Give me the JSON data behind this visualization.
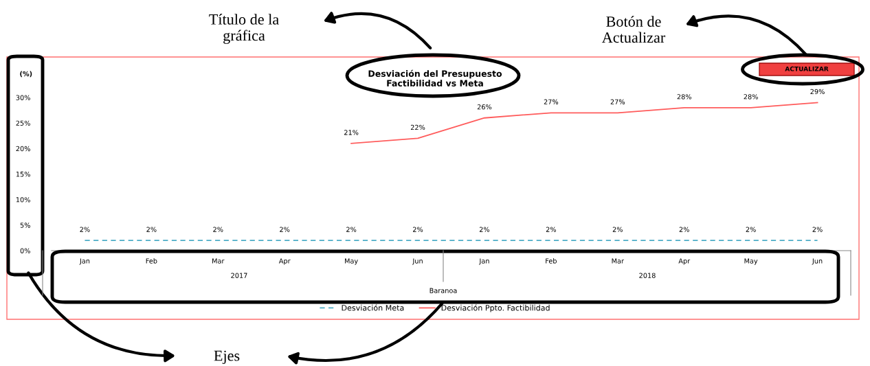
{
  "chart_data": {
    "type": "line",
    "title": "Desviación del Presupuesto\nFactibilidad vs Meta",
    "ylabel": "(%)",
    "categories": [
      "Jan",
      "Feb",
      "Mar",
      "Apr",
      "May",
      "Jun",
      "Jan",
      "Feb",
      "Mar",
      "Apr",
      "May",
      "Jun"
    ],
    "series": [
      {
        "name": "Desviación Meta",
        "color": "#4bacc6",
        "line_style": "dashed",
        "values": [
          2,
          2,
          2,
          2,
          2,
          2,
          2,
          2,
          2,
          2,
          2,
          2
        ],
        "value_labels": [
          "2%",
          "2%",
          "2%",
          "2%",
          "2%",
          "2%",
          "2%",
          "2%",
          "2%",
          "2%",
          "2%",
          "2%"
        ]
      },
      {
        "name": "Desviación Ppto. Factibilidad",
        "color": "#ff5b5b",
        "line_style": "solid",
        "values": [
          null,
          null,
          null,
          null,
          21,
          22,
          26,
          27,
          27,
          28,
          28,
          29
        ],
        "value_labels": [
          null,
          null,
          null,
          null,
          "21%",
          "22%",
          "26%",
          "27%",
          "27%",
          "28%",
          "28%",
          "29%"
        ]
      }
    ],
    "ylim": [
      0,
      30
    ],
    "yticks": [
      {
        "value": 0,
        "label": "0%"
      },
      {
        "value": 5,
        "label": "5%"
      },
      {
        "value": 10,
        "label": "10%"
      },
      {
        "value": 15,
        "label": "15%"
      },
      {
        "value": 20,
        "label": "20%"
      },
      {
        "value": 25,
        "label": "25%"
      },
      {
        "value": 30,
        "label": "30%"
      }
    ],
    "grid": false,
    "legend": "bottom",
    "marker": "none",
    "annotations": [
      "2017",
      "2018",
      "Baranoa",
      "ACTUALIZAR",
      "Título de la\ngráfica",
      "Botón de\nActualizar",
      "Ejes"
    ]
  }
}
